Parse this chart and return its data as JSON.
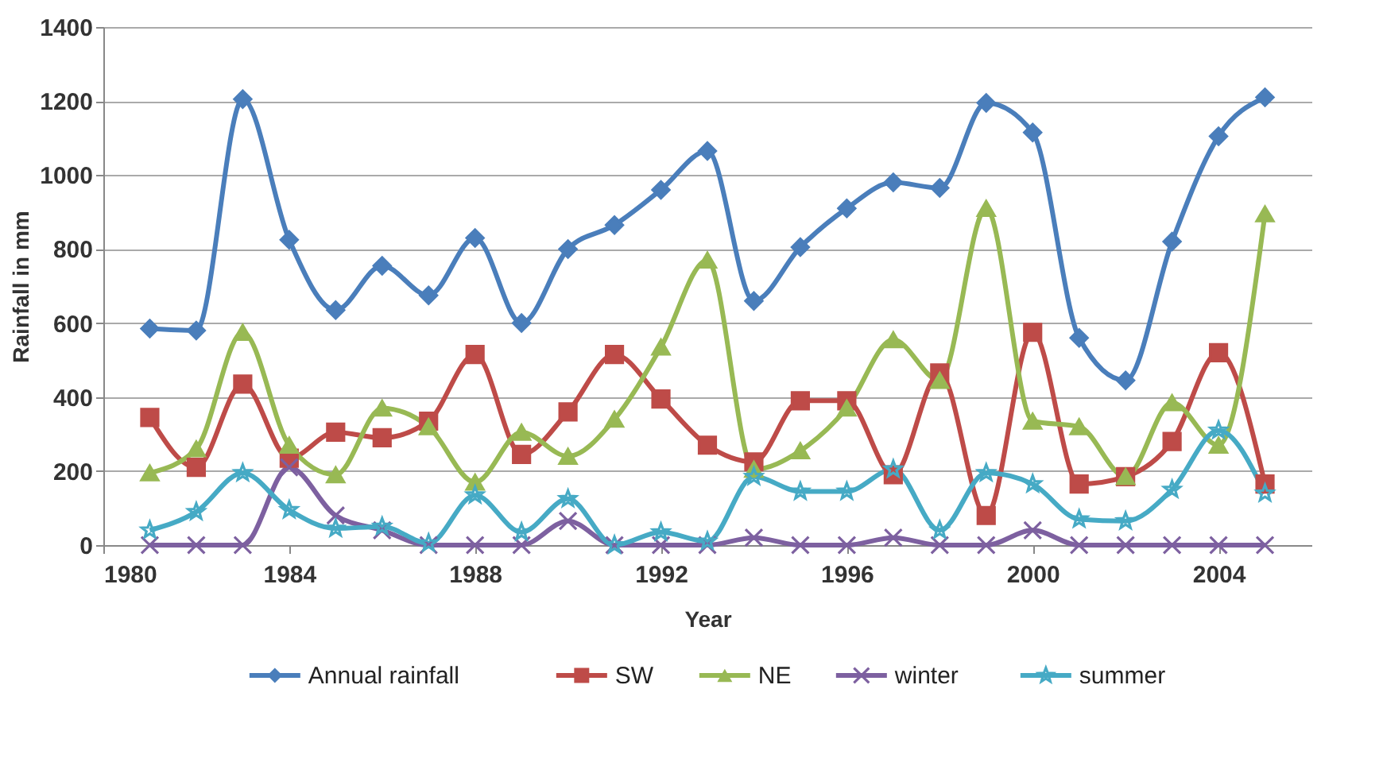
{
  "chart_data": {
    "type": "line",
    "xlabel": "Year",
    "ylabel": "Rainfall in mm",
    "x": [
      1981,
      1982,
      1983,
      1984,
      1985,
      1986,
      1987,
      1988,
      1989,
      1990,
      1991,
      1992,
      1993,
      1994,
      1995,
      1996,
      1997,
      1998,
      1999,
      2000,
      2001,
      2002,
      2003,
      2004,
      2005
    ],
    "series": [
      {
        "name": "Annual rainfall",
        "color": "#4a7ebb",
        "marker": "diamond",
        "values": [
          585,
          580,
          1205,
          825,
          635,
          755,
          675,
          830,
          600,
          800,
          865,
          960,
          1065,
          660,
          805,
          910,
          980,
          965,
          1195,
          1115,
          560,
          445,
          820,
          1105,
          1210
        ]
      },
      {
        "name": "SW",
        "color": "#be4b48",
        "marker": "square",
        "values": [
          345,
          210,
          435,
          235,
          305,
          290,
          335,
          515,
          245,
          360,
          515,
          395,
          270,
          225,
          390,
          390,
          190,
          465,
          80,
          575,
          165,
          185,
          280,
          520,
          165
        ]
      },
      {
        "name": "NE",
        "color": "#98b954",
        "marker": "triangle",
        "values": [
          195,
          260,
          575,
          270,
          190,
          370,
          320,
          170,
          305,
          240,
          340,
          535,
          770,
          205,
          255,
          370,
          555,
          445,
          910,
          335,
          320,
          185,
          385,
          270,
          895
        ]
      },
      {
        "name": "winter",
        "color": "#7d60a0",
        "marker": "cross",
        "values": [
          0,
          0,
          0,
          210,
          80,
          40,
          0,
          0,
          0,
          65,
          0,
          0,
          0,
          20,
          0,
          0,
          20,
          0,
          0,
          40,
          0,
          0,
          0,
          0,
          0
        ]
      },
      {
        "name": "summer",
        "color": "#46aac5",
        "marker": "star",
        "values": [
          40,
          90,
          195,
          95,
          45,
          50,
          5,
          135,
          35,
          125,
          0,
          35,
          10,
          185,
          145,
          145,
          205,
          40,
          195,
          165,
          70,
          65,
          150,
          310,
          140
        ]
      }
    ],
    "xlim": [
      1980,
      2006
    ],
    "xticks": [
      1980,
      1984,
      1988,
      1992,
      1996,
      2000,
      2004
    ],
    "ylim": [
      0,
      1400
    ],
    "yticks": [
      0,
      200,
      400,
      600,
      800,
      1000,
      1200,
      1400
    ],
    "grid": "y",
    "legend": "bottom"
  }
}
